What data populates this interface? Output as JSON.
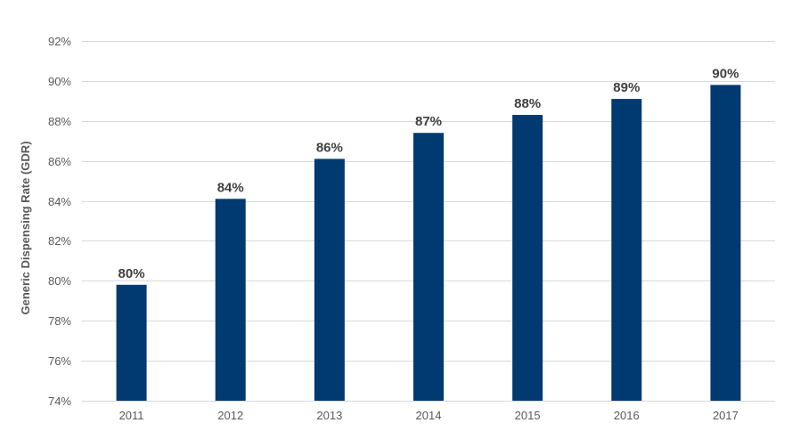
{
  "chart_data": {
    "type": "bar",
    "title": "",
    "xlabel": "",
    "ylabel": "Generic Dispensing Rate (GDR)",
    "categories": [
      "2011",
      "2012",
      "2013",
      "2014",
      "2015",
      "2016",
      "2017"
    ],
    "values": [
      79.8,
      84.1,
      86.1,
      87.4,
      88.3,
      89.1,
      89.8
    ],
    "data_labels": [
      "80%",
      "84%",
      "86%",
      "87%",
      "88%",
      "89%",
      "90%"
    ],
    "ylim": [
      74,
      92
    ],
    "yticks": [
      74,
      76,
      78,
      80,
      82,
      84,
      86,
      88,
      90,
      92
    ],
    "ytick_labels": [
      "74%",
      "76%",
      "78%",
      "80%",
      "82%",
      "84%",
      "86%",
      "88%",
      "90%",
      "92%"
    ],
    "grid": true,
    "legend": "none",
    "bar_color": "#003A70"
  }
}
